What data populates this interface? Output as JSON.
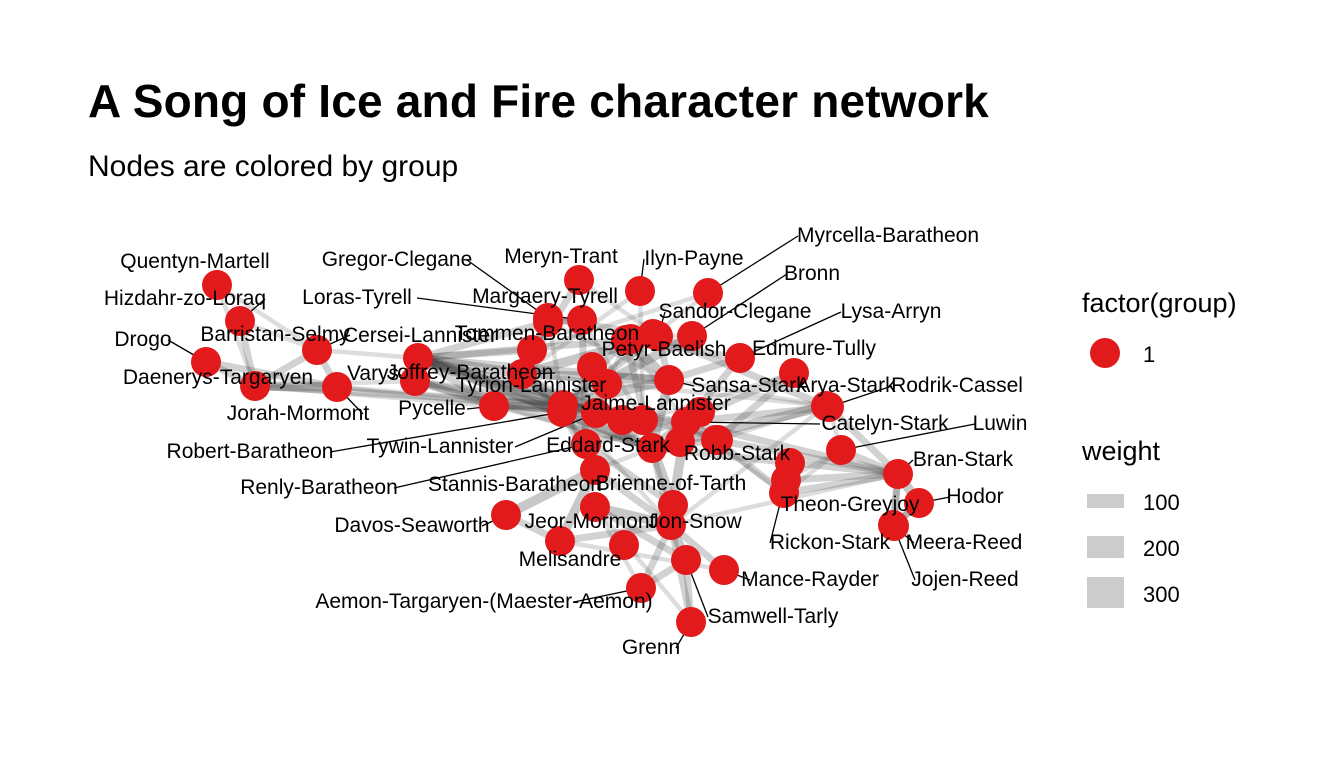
{
  "title": "A Song of Ice and Fire character network",
  "subtitle": "Nodes are colored by group",
  "node_color": "#e31a1c",
  "edge_color": "#333333",
  "legend": {
    "group": {
      "title": "factor(group)",
      "items": [
        {
          "label": "1",
          "color": "#e31a1c"
        }
      ]
    },
    "weight": {
      "title": "weight",
      "items": [
        {
          "label": "100",
          "value": 100
        },
        {
          "label": "200",
          "value": 200
        },
        {
          "label": "300",
          "value": 300
        }
      ]
    }
  },
  "nodes": [
    {
      "id": "Quentyn-Martell",
      "group": 1
    },
    {
      "id": "Hizdahr-zo-Loraq",
      "group": 1
    },
    {
      "id": "Drogo",
      "group": 1
    },
    {
      "id": "Daenerys-Targaryen",
      "group": 1
    },
    {
      "id": "Barristan-Selmy",
      "group": 1
    },
    {
      "id": "Jorah-Mormont",
      "group": 1
    },
    {
      "id": "Gregor-Clegane",
      "group": 1
    },
    {
      "id": "Loras-Tyrell",
      "group": 1
    },
    {
      "id": "Cersei-Lannister",
      "group": 1
    },
    {
      "id": "Varys",
      "group": 1
    },
    {
      "id": "Joffrey-Baratheon",
      "group": 1
    },
    {
      "id": "Tyrion-Lannister",
      "group": 1
    },
    {
      "id": "Pycelle",
      "group": 1
    },
    {
      "id": "Robert-Baratheon",
      "group": 1
    },
    {
      "id": "Tywin-Lannister",
      "group": 1
    },
    {
      "id": "Renly-Baratheon",
      "group": 1
    },
    {
      "id": "Stannis-Baratheon",
      "group": 1
    },
    {
      "id": "Davos-Seaworth",
      "group": 1
    },
    {
      "id": "Meryn-Trant",
      "group": 1
    },
    {
      "id": "Margaery-Tyrell",
      "group": 1
    },
    {
      "id": "Tommen-Baratheon",
      "group": 1
    },
    {
      "id": "Ilyn-Payne",
      "group": 1
    },
    {
      "id": "Myrcella-Baratheon",
      "group": 1
    },
    {
      "id": "Bronn",
      "group": 1
    },
    {
      "id": "Sandor-Clegane",
      "group": 1
    },
    {
      "id": "Lysa-Arryn",
      "group": 1
    },
    {
      "id": "Petyr-Baelish",
      "group": 1
    },
    {
      "id": "Edmure-Tully",
      "group": 1
    },
    {
      "id": "Sansa-Stark",
      "group": 1
    },
    {
      "id": "Arya-Stark",
      "group": 1
    },
    {
      "id": "Rodrik-Cassel",
      "group": 1
    },
    {
      "id": "Jaime-Lannister",
      "group": 1
    },
    {
      "id": "Catelyn-Stark",
      "group": 1
    },
    {
      "id": "Luwin",
      "group": 1
    },
    {
      "id": "Eddard-Stark",
      "group": 1
    },
    {
      "id": "Robb-Stark",
      "group": 1
    },
    {
      "id": "Bran-Stark",
      "group": 1
    },
    {
      "id": "Brienne-of-Tarth",
      "group": 1
    },
    {
      "id": "Hodor",
      "group": 1
    },
    {
      "id": "Theon-Greyjoy",
      "group": 1
    },
    {
      "id": "Jeor-Mormont",
      "group": 1
    },
    {
      "id": "Jon-Snow",
      "group": 1
    },
    {
      "id": "Rickon-Stark",
      "group": 1
    },
    {
      "id": "Meera-Reed",
      "group": 1
    },
    {
      "id": "Melisandre",
      "group": 1
    },
    {
      "id": "Mance-Rayder",
      "group": 1
    },
    {
      "id": "Jojen-Reed",
      "group": 1
    },
    {
      "id": "Aemon-Targaryen-(Maester-Aemon)",
      "group": 1
    },
    {
      "id": "Samwell-Tarly",
      "group": 1
    },
    {
      "id": "Grenn",
      "group": 1
    }
  ],
  "edges": [
    [
      "Daenerys-Targaryen",
      "Drogo",
      2
    ],
    [
      "Daenerys-Targaryen",
      "Jorah-Mormont",
      3
    ],
    [
      "Daenerys-Targaryen",
      "Barristan-Selmy",
      2
    ],
    [
      "Daenerys-Targaryen",
      "Hizdahr-zo-Loraq",
      2
    ],
    [
      "Daenerys-Targaryen",
      "Quentyn-Martell",
      1
    ],
    [
      "Drogo",
      "Jorah-Mormont",
      2
    ],
    [
      "Barristan-Selmy",
      "Jorah-Mormont",
      2
    ],
    [
      "Barristan-Selmy",
      "Hizdahr-zo-Loraq",
      1
    ],
    [
      "Quentyn-Martell",
      "Barristan-Selmy",
      1
    ],
    [
      "Barristan-Selmy",
      "Cersei-Lannister",
      1
    ],
    [
      "Daenerys-Targaryen",
      "Tyrion-Lannister",
      2
    ],
    [
      "Jorah-Mormont",
      "Tyrion-Lannister",
      1
    ],
    [
      "Daenerys-Targaryen",
      "Varys",
      1
    ],
    [
      "Daenerys-Targaryen",
      "Robert-Baratheon",
      1
    ],
    [
      "Jorah-Mormont",
      "Robert-Baratheon",
      1
    ],
    [
      "Cersei-Lannister",
      "Jaime-Lannister",
      3
    ],
    [
      "Cersei-Lannister",
      "Tyrion-Lannister",
      3
    ],
    [
      "Cersei-Lannister",
      "Joffrey-Baratheon",
      3
    ],
    [
      "Cersei-Lannister",
      "Tommen-Baratheon",
      2
    ],
    [
      "Cersei-Lannister",
      "Robert-Baratheon",
      3
    ],
    [
      "Cersei-Lannister",
      "Varys",
      2
    ],
    [
      "Cersei-Lannister",
      "Pycelle",
      2
    ],
    [
      "Cersei-Lannister",
      "Sansa-Stark",
      2
    ],
    [
      "Cersei-Lannister",
      "Eddard-Stark",
      2
    ],
    [
      "Cersei-Lannister",
      "Margaery-Tyrell",
      2
    ],
    [
      "Cersei-Lannister",
      "Tywin-Lannister",
      2
    ],
    [
      "Cersei-Lannister",
      "Petyr-Baelish",
      2
    ],
    [
      "Tyrion-Lannister",
      "Jaime-Lannister",
      3
    ],
    [
      "Tyrion-Lannister",
      "Joffrey-Baratheon",
      3
    ],
    [
      "Tyrion-Lannister",
      "Sansa-Stark",
      3
    ],
    [
      "Tyrion-Lannister",
      "Tywin-Lannister",
      3
    ],
    [
      "Tyrion-Lannister",
      "Varys",
      2
    ],
    [
      "Tyrion-Lannister",
      "Bronn",
      3
    ],
    [
      "Tyrion-Lannister",
      "Sandor-Clegane",
      2
    ],
    [
      "Tyrion-Lannister",
      "Pycelle",
      2
    ],
    [
      "Tyrion-Lannister",
      "Petyr-Baelish",
      2
    ],
    [
      "Tyrion-Lannister",
      "Robert-Baratheon",
      1
    ],
    [
      "Tyrion-Lannister",
      "Catelyn-Stark",
      2
    ],
    [
      "Tyrion-Lannister",
      "Jon-Snow",
      1
    ],
    [
      "Tyrion-Lannister",
      "Stannis-Baratheon",
      1
    ],
    [
      "Tyrion-Lannister",
      "Gregor-Clegane",
      1
    ],
    [
      "Tyrion-Lannister",
      "Myrcella-Baratheon",
      1
    ],
    [
      "Joffrey-Baratheon",
      "Sansa-Stark",
      3
    ],
    [
      "Joffrey-Baratheon",
      "Sandor-Clegane",
      3
    ],
    [
      "Joffrey-Baratheon",
      "Meryn-Trant",
      2
    ],
    [
      "Joffrey-Baratheon",
      "Ilyn-Payne",
      1
    ],
    [
      "Joffrey-Baratheon",
      "Margaery-Tyrell",
      2
    ],
    [
      "Joffrey-Baratheon",
      "Robert-Baratheon",
      2
    ],
    [
      "Joffrey-Baratheon",
      "Eddard-Stark",
      2
    ],
    [
      "Joffrey-Baratheon",
      "Arya-Stark",
      1
    ],
    [
      "Joffrey-Baratheon",
      "Tommen-Baratheon",
      2
    ],
    [
      "Loras-Tyrell",
      "Renly-Baratheon",
      2
    ],
    [
      "Loras-Tyrell",
      "Margaery-Tyrell",
      2
    ],
    [
      "Loras-Tyrell",
      "Jaime-Lannister",
      1
    ],
    [
      "Gregor-Clegane",
      "Sandor-Clegane",
      2
    ],
    [
      "Gregor-Clegane",
      "Loras-Tyrell",
      1
    ],
    [
      "Meryn-Trant",
      "Sandor-Clegane",
      1
    ],
    [
      "Robert-Baratheon",
      "Eddard-Stark",
      3
    ],
    [
      "Robert-Baratheon",
      "Renly-Baratheon",
      2
    ],
    [
      "Robert-Baratheon",
      "Stannis-Baratheon",
      2
    ],
    [
      "Robert-Baratheon",
      "Jaime-Lannister",
      2
    ],
    [
      "Robert-Baratheon",
      "Varys",
      2
    ],
    [
      "Robert-Baratheon",
      "Pycelle",
      1
    ],
    [
      "Renly-Baratheon",
      "Stannis-Baratheon",
      2
    ],
    [
      "Renly-Baratheon",
      "Catelyn-Stark",
      2
    ],
    [
      "Renly-Baratheon",
      "Brienne-of-Tarth",
      2
    ],
    [
      "Stannis-Baratheon",
      "Davos-Seaworth",
      3
    ],
    [
      "Stannis-Baratheon",
      "Melisandre",
      3
    ],
    [
      "Stannis-Baratheon",
      "Jon-Snow",
      2
    ],
    [
      "Davos-Seaworth",
      "Melisandre",
      2
    ],
    [
      "Melisandre",
      "Jon-Snow",
      2
    ],
    [
      "Stannis-Baratheon",
      "Eddard-Stark",
      1
    ],
    [
      "Eddard-Stark",
      "Arya-Stark",
      3
    ],
    [
      "Eddard-Stark",
      "Sansa-Stark",
      3
    ],
    [
      "Eddard-Stark",
      "Catelyn-Stark",
      3
    ],
    [
      "Eddard-Stark",
      "Robb-Stark",
      2
    ],
    [
      "Eddard-Stark",
      "Bran-Stark",
      2
    ],
    [
      "Eddard-Stark",
      "Jon-Snow",
      2
    ],
    [
      "Eddard-Stark",
      "Petyr-Baelish",
      2
    ],
    [
      "Eddard-Stark",
      "Varys",
      2
    ],
    [
      "Eddard-Stark",
      "Pycelle",
      1
    ],
    [
      "Eddard-Stark",
      "Jaime-Lannister",
      1
    ],
    [
      "Catelyn-Stark",
      "Robb-Stark",
      3
    ],
    [
      "Catelyn-Stark",
      "Brienne-of-Tarth",
      3
    ],
    [
      "Catelyn-Stark",
      "Jaime-Lannister",
      2
    ],
    [
      "Catelyn-Stark",
      "Edmure-Tully",
      2
    ],
    [
      "Catelyn-Stark",
      "Lysa-Arryn",
      2
    ],
    [
      "Catelyn-Stark",
      "Rodrik-Cassel",
      2
    ],
    [
      "Catelyn-Stark",
      "Bran-Stark",
      2
    ],
    [
      "Catelyn-Stark",
      "Theon-Greyjoy",
      1
    ],
    [
      "Catelyn-Stark",
      "Petyr-Baelish",
      1
    ],
    [
      "Robb-Stark",
      "Theon-Greyjoy",
      2
    ],
    [
      "Robb-Stark",
      "Bran-Stark",
      2
    ],
    [
      "Robb-Stark",
      "Edmure-Tully",
      2
    ],
    [
      "Robb-Stark",
      "Jaime-Lannister",
      1
    ],
    [
      "Bran-Stark",
      "Hodor",
      3
    ],
    [
      "Bran-Stark",
      "Meera-Reed",
      2
    ],
    [
      "Bran-Stark",
      "Jojen-Reed",
      2
    ],
    [
      "Bran-Stark",
      "Luwin",
      2
    ],
    [
      "Bran-Stark",
      "Rickon-Stark",
      2
    ],
    [
      "Bran-Stark",
      "Theon-Greyjoy",
      2
    ],
    [
      "Bran-Stark",
      "Rodrik-Cassel",
      2
    ],
    [
      "Hodor",
      "Meera-Reed",
      2
    ],
    [
      "Hodor",
      "Jojen-Reed",
      2
    ],
    [
      "Meera-Reed",
      "Jojen-Reed",
      2
    ],
    [
      "Theon-Greyjoy",
      "Luwin",
      1
    ],
    [
      "Theon-Greyjoy",
      "Rickon-Stark",
      1
    ],
    [
      "Luwin",
      "Rodrik-Cassel",
      1
    ],
    [
      "Luwin",
      "Rickon-Stark",
      1
    ],
    [
      "Sansa-Stark",
      "Sandor-Clegane",
      2
    ],
    [
      "Sansa-Stark",
      "Petyr-Baelish",
      3
    ],
    [
      "Sansa-Stark",
      "Arya-Stark",
      1
    ],
    [
      "Sansa-Stark",
      "Margaery-Tyrell",
      1
    ],
    [
      "Sansa-Stark",
      "Lysa-Arryn",
      2
    ],
    [
      "Petyr-Baelish",
      "Lysa-Arryn",
      2
    ],
    [
      "Arya-Stark",
      "Sandor-Clegane",
      2
    ],
    [
      "Arya-Stark",
      "Jon-Snow",
      1
    ],
    [
      "Arya-Stark",
      "Robb-Stark",
      1
    ],
    [
      "Jaime-Lannister",
      "Brienne-of-Tarth",
      3
    ],
    [
      "Jaime-Lannister",
      "Tywin-Lannister",
      2
    ],
    [
      "Jaime-Lannister",
      "Ilyn-Payne",
      1
    ],
    [
      "Jaime-Lannister",
      "Edmure-Tully",
      1
    ],
    [
      "Tywin-Lannister",
      "Petyr-Baelish",
      1
    ],
    [
      "Tywin-Lannister",
      "Pycelle",
      1
    ],
    [
      "Jon-Snow",
      "Samwell-Tarly",
      3
    ],
    [
      "Jon-Snow",
      "Jeor-Mormont",
      3
    ],
    [
      "Jon-Snow",
      "Mance-Rayder",
      2
    ],
    [
      "Jon-Snow",
      "Aemon-Targaryen-(Maester-Aemon)",
      2
    ],
    [
      "Jon-Snow",
      "Grenn",
      2
    ],
    [
      "Jon-Snow",
      "Bran-Stark",
      1
    ],
    [
      "Samwell-Tarly",
      "Jeor-Mormont",
      2
    ],
    [
      "Samwell-Tarly",
      "Aemon-Targaryen-(Maester-Aemon)",
      2
    ],
    [
      "Samwell-Tarly",
      "Grenn",
      2
    ],
    [
      "Jeor-Mormont",
      "Grenn",
      1
    ],
    [
      "Jeor-Mormont",
      "Aemon-Targaryen-(Maester-Aemon)",
      1
    ],
    [
      "Mance-Rayder",
      "Melisandre",
      1
    ],
    [
      "Sandor-Clegane",
      "Bronn",
      1
    ],
    [
      "Myrcella-Baratheon",
      "Tommen-Baratheon",
      1
    ],
    [
      "Varys",
      "Pycelle",
      2
    ],
    [
      "Tommen-Baratheon",
      "Margaery-Tyrell",
      2
    ],
    [
      "Brienne-of-Tarth",
      "Jon-Snow",
      1
    ]
  ]
}
